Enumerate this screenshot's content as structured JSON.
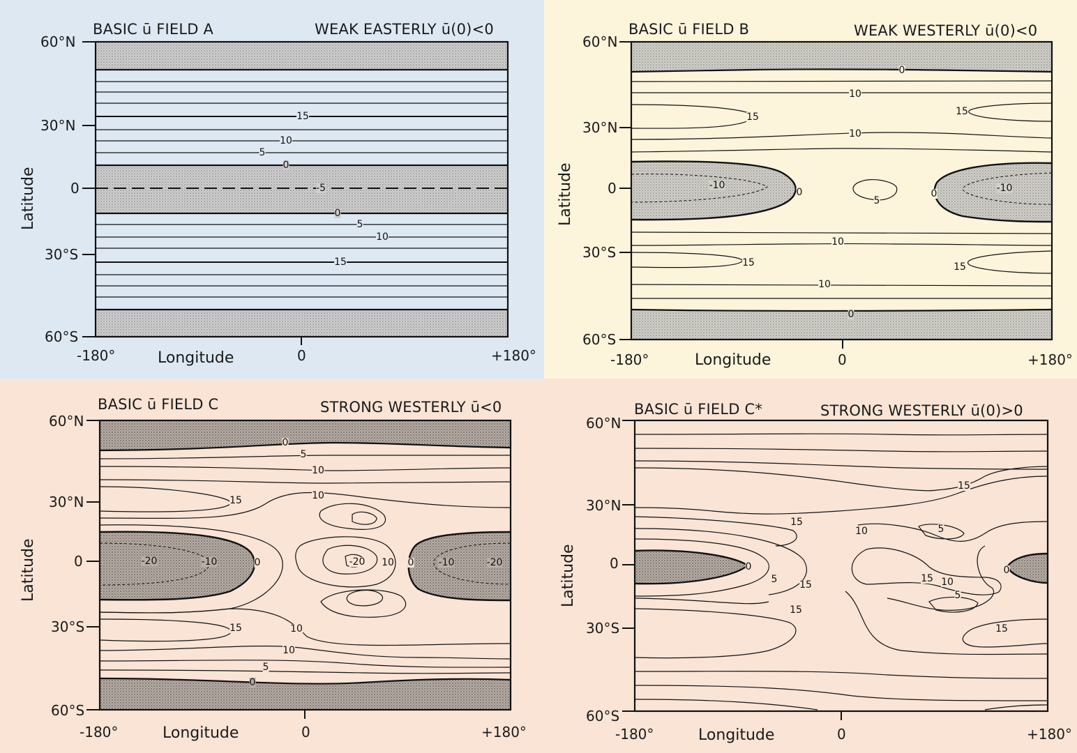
{
  "colors": {
    "panel_a_bg": "#dde8f3",
    "panel_b_bg": "#fdf4dc",
    "panel_c_bg": "#f9e4d6",
    "panel_d_bg": "#f9e4d6",
    "shading": "#b9b9b9",
    "contour": "#111111"
  },
  "panels": [
    {
      "title": "BASIC ū FIELD A",
      "subtitle": "WEAK EASTERLY ū(0)<0",
      "xlabel": "Longitude",
      "ylabel": "Latitude",
      "xticks": [
        "-180°",
        "0",
        "+180°"
      ],
      "yticks": [
        "60°N",
        "30°N",
        "0",
        "30°S",
        "60°S"
      ],
      "contour_labels": [
        "15",
        "10",
        "5",
        "0",
        "-5",
        "0",
        "5",
        "10",
        "15"
      ]
    },
    {
      "title": "BASIC ū FIELD B",
      "subtitle": "WEAK WESTERLY ū(0)<0",
      "xlabel": "Longitude",
      "ylabel": "Latitude",
      "xticks": [
        "-180°",
        "0",
        "+180°"
      ],
      "yticks": [
        "60°N",
        "30°N",
        "0",
        "30°S",
        "60°S"
      ],
      "contour_labels": [
        "0",
        "10",
        "15",
        "15",
        "10",
        "-10",
        "0",
        "5",
        "0",
        "-10",
        "10",
        "15",
        "15",
        "10",
        "0"
      ]
    },
    {
      "title": "BASIC ū FIELD C",
      "subtitle": "STRONG WESTERLY ū<0",
      "xlabel": "Longitude",
      "ylabel": "Latitude",
      "xticks": [
        "-180°",
        "0",
        "+180°"
      ],
      "yticks": [
        "60°N",
        "30°N",
        "0",
        "30°S",
        "60°S"
      ],
      "contour_labels": [
        "0",
        "5",
        "10",
        "10",
        "15",
        "-20",
        "-10",
        "0",
        "-20",
        "10",
        "0",
        "-10",
        "-20",
        "15",
        "10",
        "10",
        "5",
        "0"
      ]
    },
    {
      "title": "BASIC ū FIELD C*",
      "subtitle": "STRONG WESTERLY  ū(0)>0",
      "xlabel": "Longitude",
      "ylabel": "Latitude",
      "xticks": [
        "-180°",
        "0",
        "+180°"
      ],
      "yticks": [
        "60°N",
        "30°N",
        "0",
        "30°S",
        "60°S"
      ],
      "contour_labels": [
        "15",
        "15",
        "10",
        "5",
        "0",
        "5",
        "15",
        "15",
        "10",
        "0",
        "5",
        "15",
        "15"
      ]
    }
  ],
  "chart_data": [
    {
      "type": "contour",
      "title": "BASIC ū FIELD A",
      "subtitle": "WEAK EASTERLY ū(0)<0",
      "xlabel": "Longitude",
      "ylabel": "Latitude",
      "xlim": [
        -180,
        180
      ],
      "ylim": [
        -60,
        60
      ],
      "shaded": "ū<0",
      "zonal": true,
      "contours": [
        {
          "level": 0,
          "lat": 52
        },
        {
          "level": 15,
          "lat": 33
        },
        {
          "level": 10,
          "lat": 20
        },
        {
          "level": 5,
          "lat": 17
        },
        {
          "level": 0,
          "lat": 10
        },
        {
          "level": -5,
          "lat": 0
        },
        {
          "level": 0,
          "lat": -11
        },
        {
          "level": 5,
          "lat": -16
        },
        {
          "level": 10,
          "lat": -22
        },
        {
          "level": 15,
          "lat": -35
        },
        {
          "level": 0,
          "lat": -52
        }
      ]
    },
    {
      "type": "contour",
      "title": "BASIC ū FIELD B",
      "subtitle": "WEAK WESTERLY ū(0)<0",
      "xlabel": "Longitude",
      "ylabel": "Latitude",
      "xlim": [
        -180,
        180
      ],
      "ylim": [
        -60,
        60
      ],
      "shaded": "ū<0",
      "labeled_values": [
        {
          "level": 0,
          "lon": 50,
          "lat": 50
        },
        {
          "level": 10,
          "lon": 10,
          "lat": 40
        },
        {
          "level": 15,
          "lon": -80,
          "lat": 30
        },
        {
          "level": 15,
          "lon": 95,
          "lat": 33
        },
        {
          "level": 10,
          "lon": 10,
          "lat": 25
        },
        {
          "level": -10,
          "lon": -110,
          "lat": 0
        },
        {
          "level": 5,
          "lon": 30,
          "lat": -2
        },
        {
          "level": -10,
          "lon": 140,
          "lat": 0
        },
        {
          "level": 10,
          "lon": 0,
          "lat": -25
        },
        {
          "level": 15,
          "lon": -80,
          "lat": -33
        },
        {
          "level": 15,
          "lon": 95,
          "lat": -35
        },
        {
          "level": 10,
          "lon": -15,
          "lat": -45
        },
        {
          "level": 0,
          "lon": 5,
          "lat": -53
        }
      ]
    },
    {
      "type": "contour",
      "title": "BASIC ū FIELD C",
      "subtitle": "STRONG WESTERLY ū<0",
      "xlabel": "Longitude",
      "ylabel": "Latitude",
      "xlim": [
        -180,
        180
      ],
      "ylim": [
        -60,
        60
      ],
      "shaded": "ū<0",
      "labeled_values": [
        {
          "level": 0,
          "lon": -15,
          "lat": 51
        },
        {
          "level": 5,
          "lon": 0,
          "lat": 44
        },
        {
          "level": 10,
          "lon": 12,
          "lat": 37
        },
        {
          "level": 10,
          "lon": 12,
          "lat": 26
        },
        {
          "level": 15,
          "lon": -60,
          "lat": 25
        },
        {
          "level": -20,
          "lon": -140,
          "lat": 0
        },
        {
          "level": -10,
          "lon": -80,
          "lat": 0
        },
        {
          "level": -20,
          "lon": 45,
          "lat": 0
        },
        {
          "level": 10,
          "lon": 72,
          "lat": -1
        },
        {
          "level": -10,
          "lon": 120,
          "lat": 0
        },
        {
          "level": -20,
          "lon": 165,
          "lat": 0
        },
        {
          "level": 15,
          "lon": -60,
          "lat": -28
        },
        {
          "level": 10,
          "lon": -5,
          "lat": -28
        },
        {
          "level": 10,
          "lon": -15,
          "lat": -36
        },
        {
          "level": 5,
          "lon": -30,
          "lat": -42
        },
        {
          "level": 0,
          "lon": -45,
          "lat": -50
        }
      ]
    },
    {
      "type": "contour",
      "title": "BASIC ū FIELD C*",
      "subtitle": "STRONG WESTERLY  ū(0)>0",
      "xlabel": "Longitude",
      "ylabel": "Latitude",
      "xlim": [
        -180,
        180
      ],
      "ylim": [
        -60,
        60
      ],
      "shaded": "ū<0",
      "labeled_values": [
        {
          "level": 15,
          "lon": 100,
          "lat": 30
        },
        {
          "level": 15,
          "lon": -40,
          "lat": 15
        },
        {
          "level": 10,
          "lon": 15,
          "lat": 11
        },
        {
          "level": 5,
          "lon": 85,
          "lat": 11
        },
        {
          "level": 0,
          "lon": -80,
          "lat": 0
        },
        {
          "level": 5,
          "lon": -58,
          "lat": -6
        },
        {
          "level": 15,
          "lon": -30,
          "lat": -9
        },
        {
          "level": 15,
          "lon": 70,
          "lat": -6
        },
        {
          "level": 10,
          "lon": 90,
          "lat": -7
        },
        {
          "level": 5,
          "lon": 100,
          "lat": -12
        },
        {
          "level": 15,
          "lon": -40,
          "lat": -19
        },
        {
          "level": 0,
          "lon": 165,
          "lat": 0
        },
        {
          "level": 15,
          "lon": 140,
          "lat": -26
        }
      ]
    }
  ]
}
